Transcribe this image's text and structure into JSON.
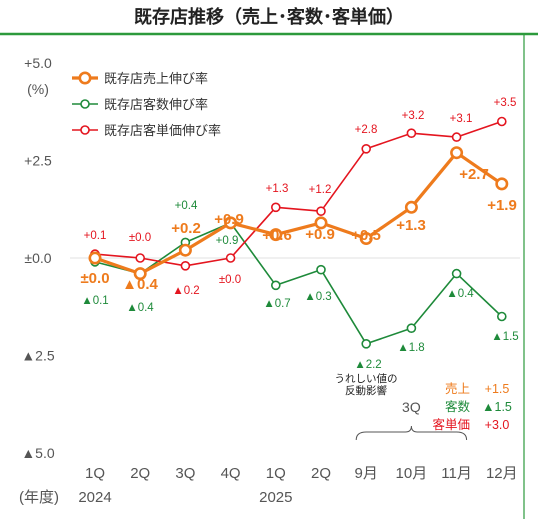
{
  "header": {
    "title": "既存店推移（売上･客数･客単価）"
  },
  "colors": {
    "sales": "#ee7b1d",
    "customers": "#1e8a3a",
    "price": "#e4151f",
    "accent_green": "#2c9a3c",
    "axis_text": "#555555"
  },
  "chart_data": {
    "type": "line",
    "title": "既存店推移（売上･客数･客単価）",
    "ylabel": "(%)",
    "xlabel": "(年度)",
    "ylim": [
      -5.0,
      5.0
    ],
    "y_ticks": [
      {
        "value": 5.0,
        "label": "+5.0"
      },
      {
        "value": 2.5,
        "label": "+2.5"
      },
      {
        "value": 0.0,
        "label": "±0.0"
      },
      {
        "value": -2.5,
        "label": "▲2.5"
      },
      {
        "value": -5.0,
        "label": "▲5.0"
      }
    ],
    "categories": [
      "1Q",
      "2Q",
      "3Q",
      "4Q",
      "1Q",
      "2Q",
      "9月",
      "10月",
      "11月",
      "12月"
    ],
    "year_labels": [
      {
        "label": "2024",
        "index": 0
      },
      {
        "label": "2025",
        "index": 4
      }
    ],
    "group_bracket": {
      "label": "3Q",
      "from": 6,
      "to": 8
    },
    "legend_position": "top-left",
    "series": [
      {
        "name": "既存店売上伸び率",
        "key": "sales",
        "values": [
          0.0,
          -0.4,
          0.2,
          0.9,
          0.6,
          0.9,
          0.5,
          1.3,
          2.7,
          1.9
        ],
        "labels": [
          "±0.0",
          "▲0.4",
          "+0.2",
          "+0.9",
          "+0.6",
          "+0.9",
          "+0.5",
          "+1.3",
          "+2.7",
          "+1.9"
        ]
      },
      {
        "name": "既存店客数伸び率",
        "key": "customers",
        "values": [
          -0.1,
          -0.4,
          0.4,
          0.9,
          -0.7,
          -0.3,
          -2.2,
          -1.8,
          -0.4,
          -1.5
        ],
        "labels": [
          "▲0.1",
          "▲0.4",
          "+0.4",
          "+0.9",
          "▲0.7",
          "▲0.3",
          "▲2.2",
          "▲1.8",
          "▲0.4",
          "▲1.5"
        ]
      },
      {
        "name": "既存店客単価伸び率",
        "key": "price",
        "values": [
          0.1,
          0.0,
          -0.2,
          0.0,
          1.3,
          1.2,
          2.8,
          3.2,
          3.1,
          3.5
        ],
        "labels": [
          "+0.1",
          "±0.0",
          "▲0.2",
          "±0.0",
          "+1.3",
          "+1.2",
          "+2.8",
          "+3.2",
          "+3.1",
          "+3.5"
        ]
      }
    ],
    "annotations": {
      "note_lines": [
        "うれしい値の",
        "反動影響"
      ],
      "summary": [
        {
          "label": "売上",
          "value": "+1.5",
          "key": "sales"
        },
        {
          "label": "客数",
          "value": "▲1.5",
          "key": "customers"
        },
        {
          "label": "客単価",
          "value": "+3.0",
          "key": "price"
        }
      ]
    }
  }
}
